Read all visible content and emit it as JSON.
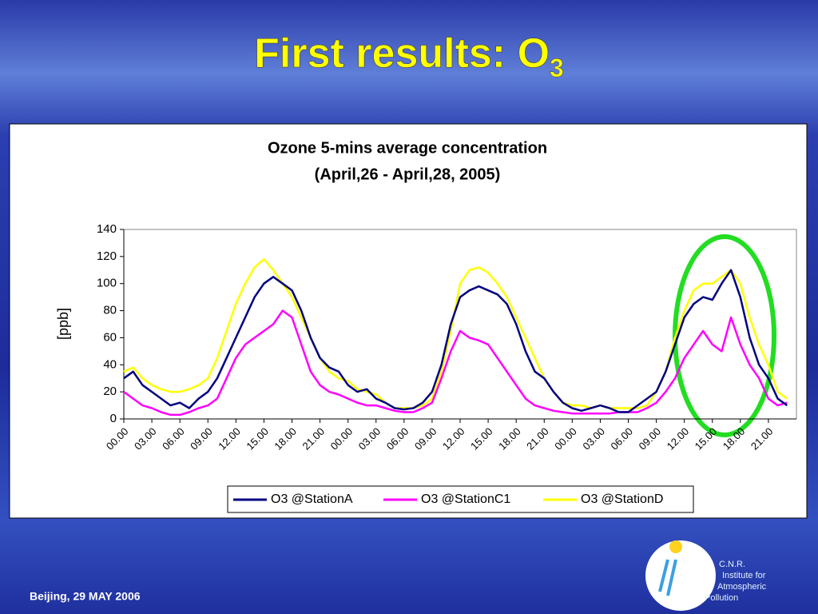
{
  "slide": {
    "title": "First results: O",
    "title_subscript": "3",
    "footer": "Beijing, 29  MAY 2006",
    "logo_lines": [
      "C.N.R.",
      "Institute for",
      "Atmospheric",
      "Pollution"
    ]
  },
  "chart_data": {
    "type": "line",
    "title": "Ozone 5-mins average concentration",
    "subtitle": "(April,26 - April,28, 2005)",
    "y_label": "[ppb]",
    "categories": [
      "00.00",
      null,
      null,
      "03.00",
      null,
      null,
      "06.00",
      null,
      null,
      "09.00",
      null,
      null,
      "12.00",
      null,
      null,
      "15.00",
      null,
      null,
      "18.00",
      null,
      null,
      "21.00",
      null,
      null,
      "00.00",
      null,
      null,
      "03.00",
      null,
      null,
      "06.00",
      null,
      null,
      "09.00",
      null,
      null,
      "12.00",
      null,
      null,
      "15.00",
      null,
      null,
      "18.00",
      null,
      null,
      "21.00",
      null,
      null,
      "00.00",
      null,
      null,
      "03.00",
      null,
      null,
      "06.00",
      null,
      null,
      "09.00",
      null,
      null,
      "12.00",
      null,
      null,
      "15.00",
      null,
      null,
      "18.00",
      null,
      null,
      "21.00",
      null,
      null
    ],
    "series": [
      {
        "name": "O3 @StationA",
        "color": "#000080",
        "values": [
          30,
          35,
          25,
          20,
          15,
          10,
          12,
          8,
          15,
          20,
          30,
          45,
          60,
          75,
          90,
          100,
          105,
          100,
          95,
          80,
          60,
          45,
          38,
          35,
          25,
          20,
          22,
          15,
          12,
          8,
          7,
          8,
          12,
          20,
          40,
          70,
          90,
          95,
          98,
          95,
          92,
          85,
          70,
          50,
          35,
          30,
          20,
          12,
          8,
          6,
          8,
          10,
          8,
          5,
          5,
          10,
          15,
          20,
          35,
          55,
          75,
          85,
          90,
          88,
          100,
          110,
          90,
          60,
          40,
          30,
          15,
          10
        ]
      },
      {
        "name": "O3 @StationC1",
        "color": "#ff00ff",
        "values": [
          20,
          15,
          10,
          8,
          5,
          3,
          3,
          5,
          8,
          10,
          15,
          30,
          45,
          55,
          60,
          65,
          70,
          80,
          75,
          55,
          35,
          25,
          20,
          18,
          15,
          12,
          10,
          10,
          8,
          6,
          5,
          5,
          8,
          12,
          30,
          50,
          65,
          60,
          58,
          55,
          45,
          35,
          25,
          15,
          10,
          8,
          6,
          5,
          4,
          4,
          4,
          4,
          4,
          5,
          5,
          5,
          8,
          12,
          20,
          30,
          45,
          55,
          65,
          55,
          50,
          75,
          55,
          40,
          30,
          15,
          10,
          12
        ]
      },
      {
        "name": "O3 @StationD",
        "color": "#ffff00",
        "values": [
          35,
          38,
          30,
          25,
          22,
          20,
          20,
          22,
          25,
          30,
          45,
          65,
          85,
          100,
          112,
          118,
          110,
          100,
          90,
          75,
          60,
          45,
          35,
          30,
          28,
          22,
          20,
          18,
          12,
          8,
          8,
          8,
          10,
          15,
          35,
          65,
          100,
          110,
          112,
          108,
          100,
          90,
          75,
          60,
          45,
          30,
          20,
          12,
          10,
          10,
          8,
          10,
          8,
          8,
          8,
          8,
          10,
          20,
          35,
          60,
          80,
          95,
          100,
          100,
          105,
          110,
          100,
          75,
          55,
          40,
          20,
          15
        ]
      }
    ],
    "ylim": [
      0,
      140
    ],
    "yticks": [
      0,
      20,
      40,
      60,
      80,
      100,
      120,
      140
    ],
    "grid": false,
    "legend": "bottom"
  }
}
